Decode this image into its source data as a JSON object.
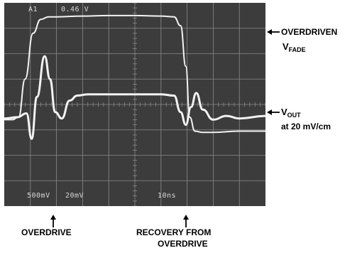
{
  "scope": {
    "channel_readout": "A1",
    "level_readout": "0.46 V",
    "ch1_scale": "500mV",
    "ch2_scale": "20mV",
    "time_scale": "10ns"
  },
  "annotations": {
    "overdriven_label": "OVERDRIVEN",
    "vfade_main": "V",
    "vfade_sub": "FADE",
    "vout_main": "V",
    "vout_sub": "OUT",
    "vout_scale": "at 20 mV/cm",
    "overdrive_label": "OVERDRIVE",
    "recovery_line1": "RECOVERY FROM",
    "recovery_line2": "OVERDRIVE"
  },
  "colors": {
    "screen_bg": "#3c3c3c",
    "trace": "#f2f2f2",
    "graticule": "#8a8a8a"
  },
  "chart_data": {
    "type": "line",
    "title": "",
    "xlabel": "",
    "ylabel": "",
    "time_per_div": "10ns",
    "grid": true,
    "divisions": {
      "x": 10,
      "y": 8
    },
    "series": [
      {
        "name": "VFADE",
        "x": [
          0.0,
          0.3,
          0.55,
          0.8,
          1.1,
          1.4,
          1.7,
          2.0,
          3.0,
          4.0,
          5.0,
          6.0,
          6.5,
          6.75,
          6.95,
          7.1,
          7.3,
          7.6,
          8.0,
          9.0,
          10.0
        ],
        "y": [
          -0.6,
          -0.6,
          -0.5,
          1.0,
          2.8,
          3.35,
          3.45,
          3.45,
          3.48,
          3.5,
          3.5,
          3.48,
          3.45,
          3.1,
          1.5,
          -0.5,
          -1.05,
          -1.1,
          -1.1,
          -1.05,
          -1.05
        ]
      },
      {
        "name": "VOUT",
        "x": [
          0.0,
          0.5,
          0.85,
          1.05,
          1.25,
          1.55,
          1.75,
          1.95,
          2.2,
          2.5,
          2.8,
          3.2,
          4.0,
          5.0,
          6.0,
          6.5,
          6.75,
          6.95,
          7.15,
          7.35,
          7.6,
          8.0,
          8.5,
          9.0,
          10.0
        ],
        "y": [
          -0.55,
          -0.5,
          -0.35,
          -1.35,
          0.3,
          1.9,
          1.0,
          -0.3,
          -0.55,
          0.15,
          0.35,
          0.4,
          0.4,
          0.4,
          0.4,
          0.35,
          -0.3,
          -0.8,
          -0.1,
          0.45,
          -0.2,
          -0.6,
          -0.45,
          -0.55,
          -0.45
        ]
      }
    ]
  }
}
